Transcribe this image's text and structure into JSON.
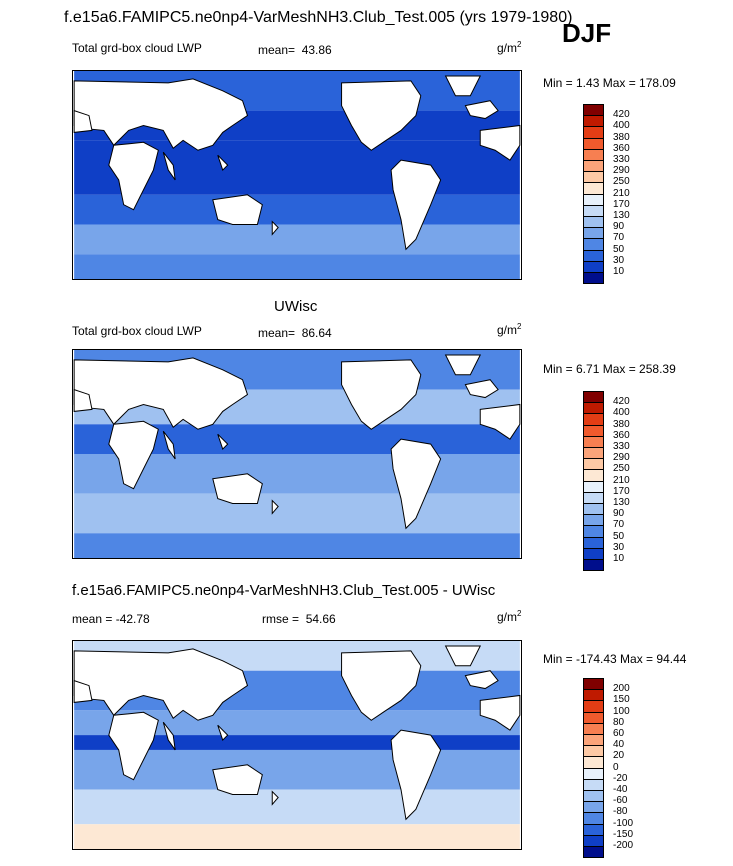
{
  "header": {
    "title": "f.e15a6.FAMIPC5.ne0np4-VarMeshNH3.Club_Test.005 (yrs 1979-1980)",
    "season": "DJF"
  },
  "panels": [
    {
      "title": "",
      "variable": "Total grd-box cloud LWP",
      "stat_label": "mean=",
      "stat_value": "43.86",
      "units_base": "g/m",
      "units_sup": "2",
      "minmax": "Min =   1.43 Max = 178.09",
      "colorbar": {
        "labels": [
          "420",
          "400",
          "380",
          "360",
          "330",
          "290",
          "250",
          "210",
          "170",
          "130",
          "90",
          "70",
          "50",
          "30",
          "10"
        ],
        "colors": [
          "#800000",
          "#bf1a00",
          "#e33d15",
          "#f05a2d",
          "#f77f51",
          "#fba47a",
          "#fdc9a5",
          "#fde8d4",
          "#e8f1fb",
          "#c6dbf6",
          "#9fc1f0",
          "#78a5ea",
          "#4f86e4",
          "#2a63d9",
          "#0f3fc6",
          "#000e8c"
        ]
      }
    },
    {
      "title": "UWisc",
      "variable": "Total grd-box cloud LWP",
      "stat_label": "mean=",
      "stat_value": "86.64",
      "units_base": "g/m",
      "units_sup": "2",
      "minmax": "Min =   6.71 Max = 258.39",
      "colorbar": {
        "labels": [
          "420",
          "400",
          "380",
          "360",
          "330",
          "290",
          "250",
          "210",
          "170",
          "130",
          "90",
          "70",
          "50",
          "30",
          "10"
        ],
        "colors": [
          "#800000",
          "#bf1a00",
          "#e33d15",
          "#f05a2d",
          "#f77f51",
          "#fba47a",
          "#fdc9a5",
          "#fde8d4",
          "#e8f1fb",
          "#c6dbf6",
          "#9fc1f0",
          "#78a5ea",
          "#4f86e4",
          "#2a63d9",
          "#0f3fc6",
          "#000e8c"
        ]
      }
    },
    {
      "title": "f.e15a6.FAMIPC5.ne0np4-VarMeshNH3.Club_Test.005 - UWisc",
      "variable": "mean = -42.78",
      "stat_label": "rmse =",
      "stat_value": "54.66",
      "units_base": "g/m",
      "units_sup": "2",
      "minmax": "Min = -174.43 Max =  94.44",
      "colorbar": {
        "labels": [
          "200",
          "150",
          "100",
          "80",
          "60",
          "40",
          "20",
          "0",
          "-20",
          "-40",
          "-60",
          "-80",
          "-100",
          "-150",
          "-200"
        ],
        "colors": [
          "#800000",
          "#bf1a00",
          "#e33d15",
          "#f05a2d",
          "#f77f51",
          "#fba47a",
          "#fdc9a5",
          "#fde8d4",
          "#e8f1fb",
          "#c6dbf6",
          "#9fc1f0",
          "#78a5ea",
          "#4f86e4",
          "#2a63d9",
          "#0f3fc6",
          "#000e8c"
        ]
      }
    }
  ],
  "chart_data": [
    {
      "type": "heatmap",
      "title": "Total grd-box cloud LWP",
      "subtitle": "mean= 43.86",
      "units": "g/m2",
      "min": 1.43,
      "max": 178.09,
      "levels": [
        10,
        30,
        50,
        70,
        90,
        130,
        170,
        210,
        250,
        290,
        330,
        360,
        380,
        400,
        420
      ]
    },
    {
      "type": "heatmap",
      "title": "UWisc",
      "subtitle": "mean= 86.64",
      "units": "g/m2",
      "min": 6.71,
      "max": 258.39,
      "levels": [
        10,
        30,
        50,
        70,
        90,
        130,
        170,
        210,
        250,
        290,
        330,
        360,
        380,
        400,
        420
      ]
    },
    {
      "type": "heatmap",
      "title": "f.e15a6.FAMIPC5.ne0np4-VarMeshNH3.Club_Test.005 - UWisc",
      "subtitle": "mean = -42.78  rmse = 54.66",
      "units": "g/m2",
      "min": -174.43,
      "max": 94.44,
      "levels": [
        -200,
        -150,
        -100,
        -80,
        -60,
        -40,
        -20,
        0,
        20,
        40,
        60,
        80,
        100,
        150,
        200
      ]
    }
  ]
}
